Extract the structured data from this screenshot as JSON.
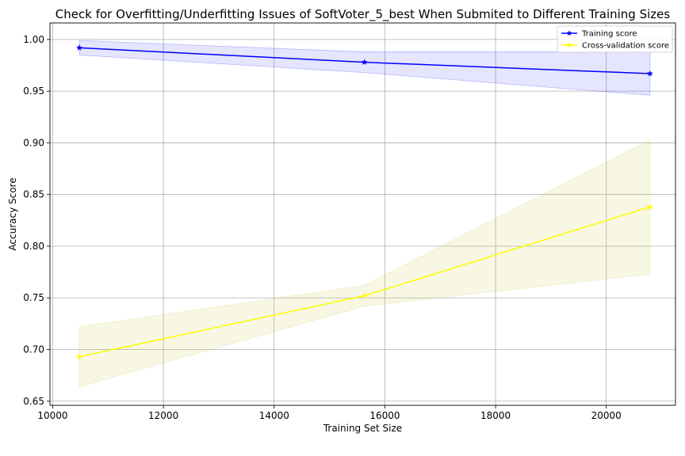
{
  "chart_data": {
    "type": "line",
    "title": "Check for Overfitting/Underfitting Issues of SoftVoter_5_best When Submited to Different Training Sizes",
    "xlabel": "Training Set Size",
    "ylabel": "Accuracy Score",
    "xlim": [
      9950,
      21250
    ],
    "ylim": [
      0.646,
      1.016
    ],
    "xticks": [
      10000,
      12000,
      14000,
      16000,
      18000,
      20000
    ],
    "yticks": [
      0.65,
      0.7,
      0.75,
      0.8,
      0.85,
      0.9,
      0.95,
      1.0
    ],
    "xtick_labels": [
      "10000",
      "12000",
      "14000",
      "16000",
      "18000",
      "20000"
    ],
    "ytick_labels": [
      "0.65",
      "0.70",
      "0.75",
      "0.80",
      "0.85",
      "0.90",
      "0.95",
      "1.00"
    ],
    "grid": true,
    "legend_position": "top-right",
    "x": [
      10480,
      15630,
      20790
    ],
    "series": [
      {
        "name": "Training score",
        "color": "#0000ff",
        "band_color": "#0000ff",
        "marker": "star",
        "values": [
          0.992,
          0.978,
          0.967
        ],
        "upper": [
          0.999,
          0.988,
          0.988
        ],
        "lower": [
          0.985,
          0.968,
          0.946
        ]
      },
      {
        "name": "Cross-validation score",
        "color": "#ffff00",
        "band_color": "#c8c84a",
        "marker": "star",
        "values": [
          0.693,
          0.752,
          0.838
        ],
        "upper": [
          0.722,
          0.762,
          0.903
        ],
        "lower": [
          0.664,
          0.742,
          0.773
        ]
      }
    ]
  }
}
